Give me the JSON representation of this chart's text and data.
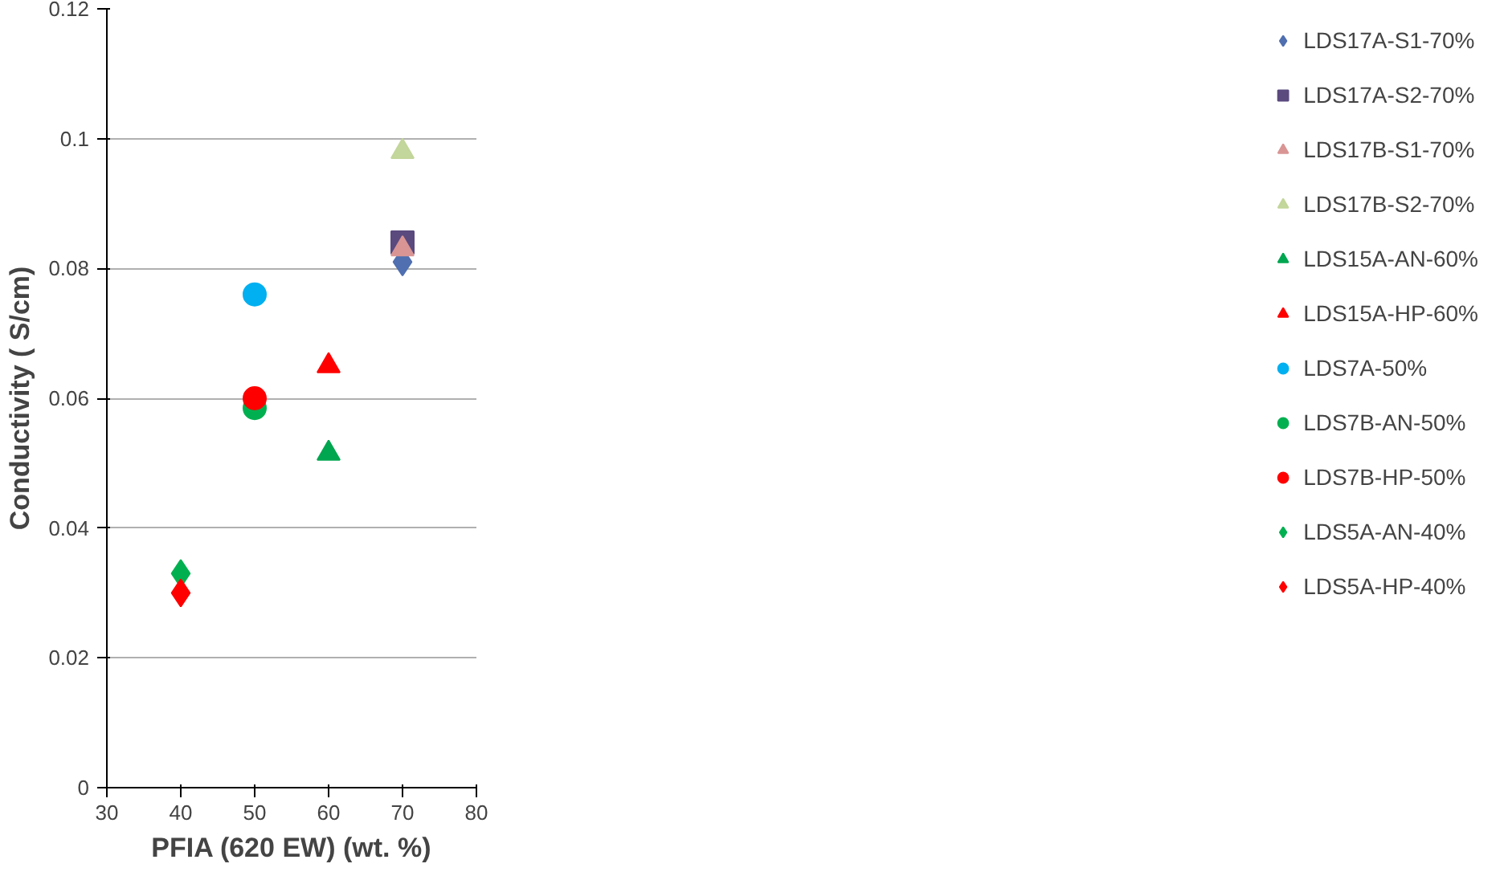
{
  "chart_data": {
    "type": "scatter",
    "xlabel": "PFIA (620 EW) (wt. %)",
    "ylabel": "Conductivity ( S/cm)",
    "xlim": [
      30,
      80
    ],
    "xticks": [
      30,
      40,
      50,
      60,
      70,
      80
    ],
    "ylim": [
      0,
      0.12
    ],
    "yticks": [
      0,
      0.02,
      0.04,
      0.06,
      0.08,
      0.1,
      0.12
    ],
    "grid": "y",
    "legend": "right",
    "series": [
      {
        "name": "LDS17A-S1-70%",
        "color": "#4f6fb0",
        "marker": "diamond",
        "x": [
          70
        ],
        "values": [
          0.081
        ]
      },
      {
        "name": "LDS17A-S2-70%",
        "color": "#5a4a7e",
        "marker": "square",
        "x": [
          70
        ],
        "values": [
          0.084
        ]
      },
      {
        "name": "LDS17B-S1-70%",
        "color": "#d99594",
        "marker": "triangle",
        "x": [
          70
        ],
        "values": [
          0.083
        ]
      },
      {
        "name": "LDS17B-S2-70%",
        "color": "#c3d69b",
        "marker": "triangle",
        "x": [
          70
        ],
        "values": [
          0.098
        ]
      },
      {
        "name": "LDS15A-AN-60%",
        "color": "#00a650",
        "marker": "triangle",
        "x": [
          60
        ],
        "values": [
          0.0515
        ]
      },
      {
        "name": "LDS15A-HP-60%",
        "color": "#ff0000",
        "marker": "triangle",
        "x": [
          60
        ],
        "values": [
          0.065
        ]
      },
      {
        "name": "LDS7A-50%",
        "color": "#00b0f0",
        "marker": "circle",
        "x": [
          50
        ],
        "values": [
          0.076
        ]
      },
      {
        "name": "LDS7B-AN-50%",
        "color": "#00b050",
        "marker": "circle",
        "x": [
          50
        ],
        "values": [
          0.0585
        ]
      },
      {
        "name": "LDS7B-HP-50%",
        "color": "#ff0000",
        "marker": "circle",
        "x": [
          50
        ],
        "values": [
          0.06
        ]
      },
      {
        "name": "LDS5A-AN-40%",
        "color": "#00b050",
        "marker": "diamond",
        "x": [
          40
        ],
        "values": [
          0.033
        ]
      },
      {
        "name": "LDS5A-HP-40%",
        "color": "#ff0000",
        "marker": "diamond",
        "x": [
          40
        ],
        "values": [
          0.03
        ]
      }
    ]
  }
}
